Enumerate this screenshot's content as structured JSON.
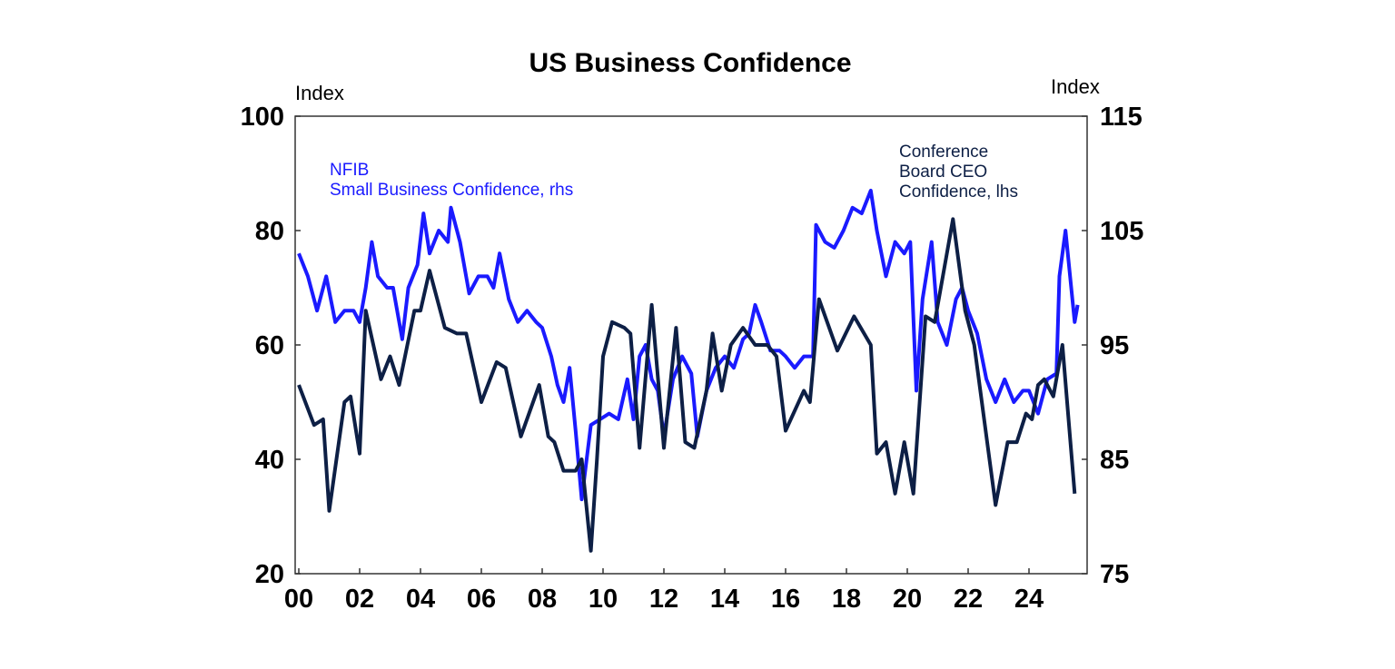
{
  "chart_data": {
    "type": "line",
    "title": "US Business Confidence",
    "left_axis": {
      "label": "Index",
      "ylim": [
        20,
        100
      ],
      "ticks": [
        20,
        40,
        60,
        80,
        100
      ]
    },
    "right_axis": {
      "label": "Index",
      "ylim": [
        75,
        115
      ],
      "ticks": [
        75,
        85,
        95,
        105,
        115
      ]
    },
    "x_axis": {
      "xlim": [
        2000,
        2025.9
      ],
      "ticks": [
        2000,
        2002,
        2004,
        2006,
        2008,
        2010,
        2012,
        2014,
        2016,
        2018,
        2020,
        2022,
        2024
      ],
      "tick_labels": [
        "00",
        "02",
        "04",
        "06",
        "08",
        "10",
        "12",
        "14",
        "16",
        "18",
        "20",
        "22",
        "24"
      ]
    },
    "grid": false,
    "series": [
      {
        "name": "NFIB Small Business Confidence, rhs",
        "label_lines": [
          "NFIB",
          "Small Business Confidence, rhs"
        ],
        "axis": "right",
        "color": "#1a1aff",
        "points": [
          [
            2000.0,
            103
          ],
          [
            2000.3,
            101
          ],
          [
            2000.6,
            98
          ],
          [
            2000.9,
            101
          ],
          [
            2001.2,
            97
          ],
          [
            2001.5,
            98
          ],
          [
            2001.8,
            98
          ],
          [
            2002.0,
            97
          ],
          [
            2002.2,
            100
          ],
          [
            2002.4,
            104
          ],
          [
            2002.6,
            101
          ],
          [
            2002.9,
            100
          ],
          [
            2003.1,
            100
          ],
          [
            2003.4,
            95.5
          ],
          [
            2003.6,
            100
          ],
          [
            2003.9,
            102
          ],
          [
            2004.1,
            106.5
          ],
          [
            2004.3,
            103
          ],
          [
            2004.6,
            105
          ],
          [
            2004.9,
            104
          ],
          [
            2005.0,
            107
          ],
          [
            2005.3,
            104
          ],
          [
            2005.6,
            99.5
          ],
          [
            2005.9,
            101
          ],
          [
            2006.2,
            101
          ],
          [
            2006.4,
            100
          ],
          [
            2006.6,
            103
          ],
          [
            2006.9,
            99
          ],
          [
            2007.2,
            97
          ],
          [
            2007.5,
            98
          ],
          [
            2007.8,
            97
          ],
          [
            2008.0,
            96.5
          ],
          [
            2008.3,
            94
          ],
          [
            2008.5,
            91.5
          ],
          [
            2008.7,
            90
          ],
          [
            2008.9,
            93
          ],
          [
            2009.1,
            87.5
          ],
          [
            2009.3,
            81.5
          ],
          [
            2009.6,
            88
          ],
          [
            2009.9,
            88.5
          ],
          [
            2010.2,
            89
          ],
          [
            2010.5,
            88.5
          ],
          [
            2010.8,
            92
          ],
          [
            2011.0,
            88.5
          ],
          [
            2011.2,
            94
          ],
          [
            2011.4,
            95
          ],
          [
            2011.6,
            92
          ],
          [
            2011.8,
            91
          ],
          [
            2012.0,
            87
          ],
          [
            2012.3,
            92
          ],
          [
            2012.6,
            94
          ],
          [
            2012.9,
            92.5
          ],
          [
            2013.1,
            87
          ],
          [
            2013.4,
            91
          ],
          [
            2013.7,
            93
          ],
          [
            2014.0,
            94
          ],
          [
            2014.3,
            93
          ],
          [
            2014.6,
            95.5
          ],
          [
            2014.8,
            96
          ],
          [
            2015.0,
            98.5
          ],
          [
            2015.2,
            97
          ],
          [
            2015.5,
            94.5
          ],
          [
            2015.8,
            94.5
          ],
          [
            2016.0,
            94
          ],
          [
            2016.3,
            93
          ],
          [
            2016.6,
            94
          ],
          [
            2016.9,
            94
          ],
          [
            2017.0,
            105.5
          ],
          [
            2017.3,
            104
          ],
          [
            2017.6,
            103.5
          ],
          [
            2017.9,
            105
          ],
          [
            2018.2,
            107
          ],
          [
            2018.5,
            106.5
          ],
          [
            2018.8,
            108.5
          ],
          [
            2019.0,
            105
          ],
          [
            2019.3,
            101
          ],
          [
            2019.6,
            104
          ],
          [
            2019.9,
            103
          ],
          [
            2020.1,
            104
          ],
          [
            2020.3,
            91
          ],
          [
            2020.5,
            99
          ],
          [
            2020.8,
            104
          ],
          [
            2021.0,
            97
          ],
          [
            2021.3,
            95
          ],
          [
            2021.6,
            99
          ],
          [
            2021.8,
            100
          ],
          [
            2022.0,
            98
          ],
          [
            2022.3,
            96
          ],
          [
            2022.6,
            92
          ],
          [
            2022.9,
            90
          ],
          [
            2023.2,
            92
          ],
          [
            2023.5,
            90
          ],
          [
            2023.8,
            91
          ],
          [
            2024.0,
            91
          ],
          [
            2024.3,
            89
          ],
          [
            2024.6,
            92
          ],
          [
            2024.9,
            92.5
          ],
          [
            2025.0,
            101
          ],
          [
            2025.2,
            105
          ],
          [
            2025.5,
            97
          ],
          [
            2025.6,
            98.5
          ]
        ]
      },
      {
        "name": "Conference Board CEO Confidence, lhs",
        "label_lines": [
          "Conference",
          "Board CEO",
          "Confidence, lhs"
        ],
        "axis": "left",
        "color": "#0d1f45",
        "points": [
          [
            2000.0,
            53
          ],
          [
            2000.5,
            46
          ],
          [
            2000.8,
            47
          ],
          [
            2001.0,
            31
          ],
          [
            2001.5,
            50
          ],
          [
            2001.7,
            51
          ],
          [
            2002.0,
            41
          ],
          [
            2002.2,
            66
          ],
          [
            2002.7,
            54
          ],
          [
            2003.0,
            58
          ],
          [
            2003.3,
            53
          ],
          [
            2003.8,
            66
          ],
          [
            2004.0,
            66
          ],
          [
            2004.3,
            73
          ],
          [
            2004.8,
            63
          ],
          [
            2005.2,
            62
          ],
          [
            2005.5,
            62
          ],
          [
            2006.0,
            50
          ],
          [
            2006.5,
            57
          ],
          [
            2006.8,
            56
          ],
          [
            2007.3,
            44
          ],
          [
            2007.9,
            53
          ],
          [
            2008.2,
            44
          ],
          [
            2008.4,
            43
          ],
          [
            2008.7,
            38
          ],
          [
            2009.1,
            38
          ],
          [
            2009.3,
            40
          ],
          [
            2009.6,
            24
          ],
          [
            2009.8,
            40
          ],
          [
            2010.0,
            58
          ],
          [
            2010.3,
            64
          ],
          [
            2010.7,
            63
          ],
          [
            2010.9,
            62
          ],
          [
            2011.2,
            42
          ],
          [
            2011.6,
            67
          ],
          [
            2012.0,
            42
          ],
          [
            2012.4,
            63
          ],
          [
            2012.7,
            43
          ],
          [
            2013.0,
            42
          ],
          [
            2013.4,
            52
          ],
          [
            2013.6,
            62
          ],
          [
            2013.9,
            52
          ],
          [
            2014.2,
            60
          ],
          [
            2014.6,
            63
          ],
          [
            2015.0,
            60
          ],
          [
            2015.4,
            60
          ],
          [
            2015.7,
            58
          ],
          [
            2016.0,
            45
          ],
          [
            2016.6,
            52
          ],
          [
            2016.8,
            50
          ],
          [
            2017.1,
            68
          ],
          [
            2017.7,
            59
          ],
          [
            2018.25,
            65
          ],
          [
            2018.8,
            60
          ],
          [
            2019.0,
            41
          ],
          [
            2019.3,
            43
          ],
          [
            2019.6,
            34
          ],
          [
            2019.9,
            43
          ],
          [
            2020.2,
            34
          ],
          [
            2020.6,
            65
          ],
          [
            2020.9,
            64
          ],
          [
            2021.5,
            82
          ],
          [
            2021.9,
            66
          ],
          [
            2022.2,
            60
          ],
          [
            2022.9,
            32
          ],
          [
            2023.3,
            43
          ],
          [
            2023.6,
            43
          ],
          [
            2023.9,
            48
          ],
          [
            2024.1,
            47
          ],
          [
            2024.3,
            53
          ],
          [
            2024.5,
            54
          ],
          [
            2024.8,
            51
          ],
          [
            2025.1,
            60
          ],
          [
            2025.5,
            34
          ]
        ]
      }
    ]
  }
}
